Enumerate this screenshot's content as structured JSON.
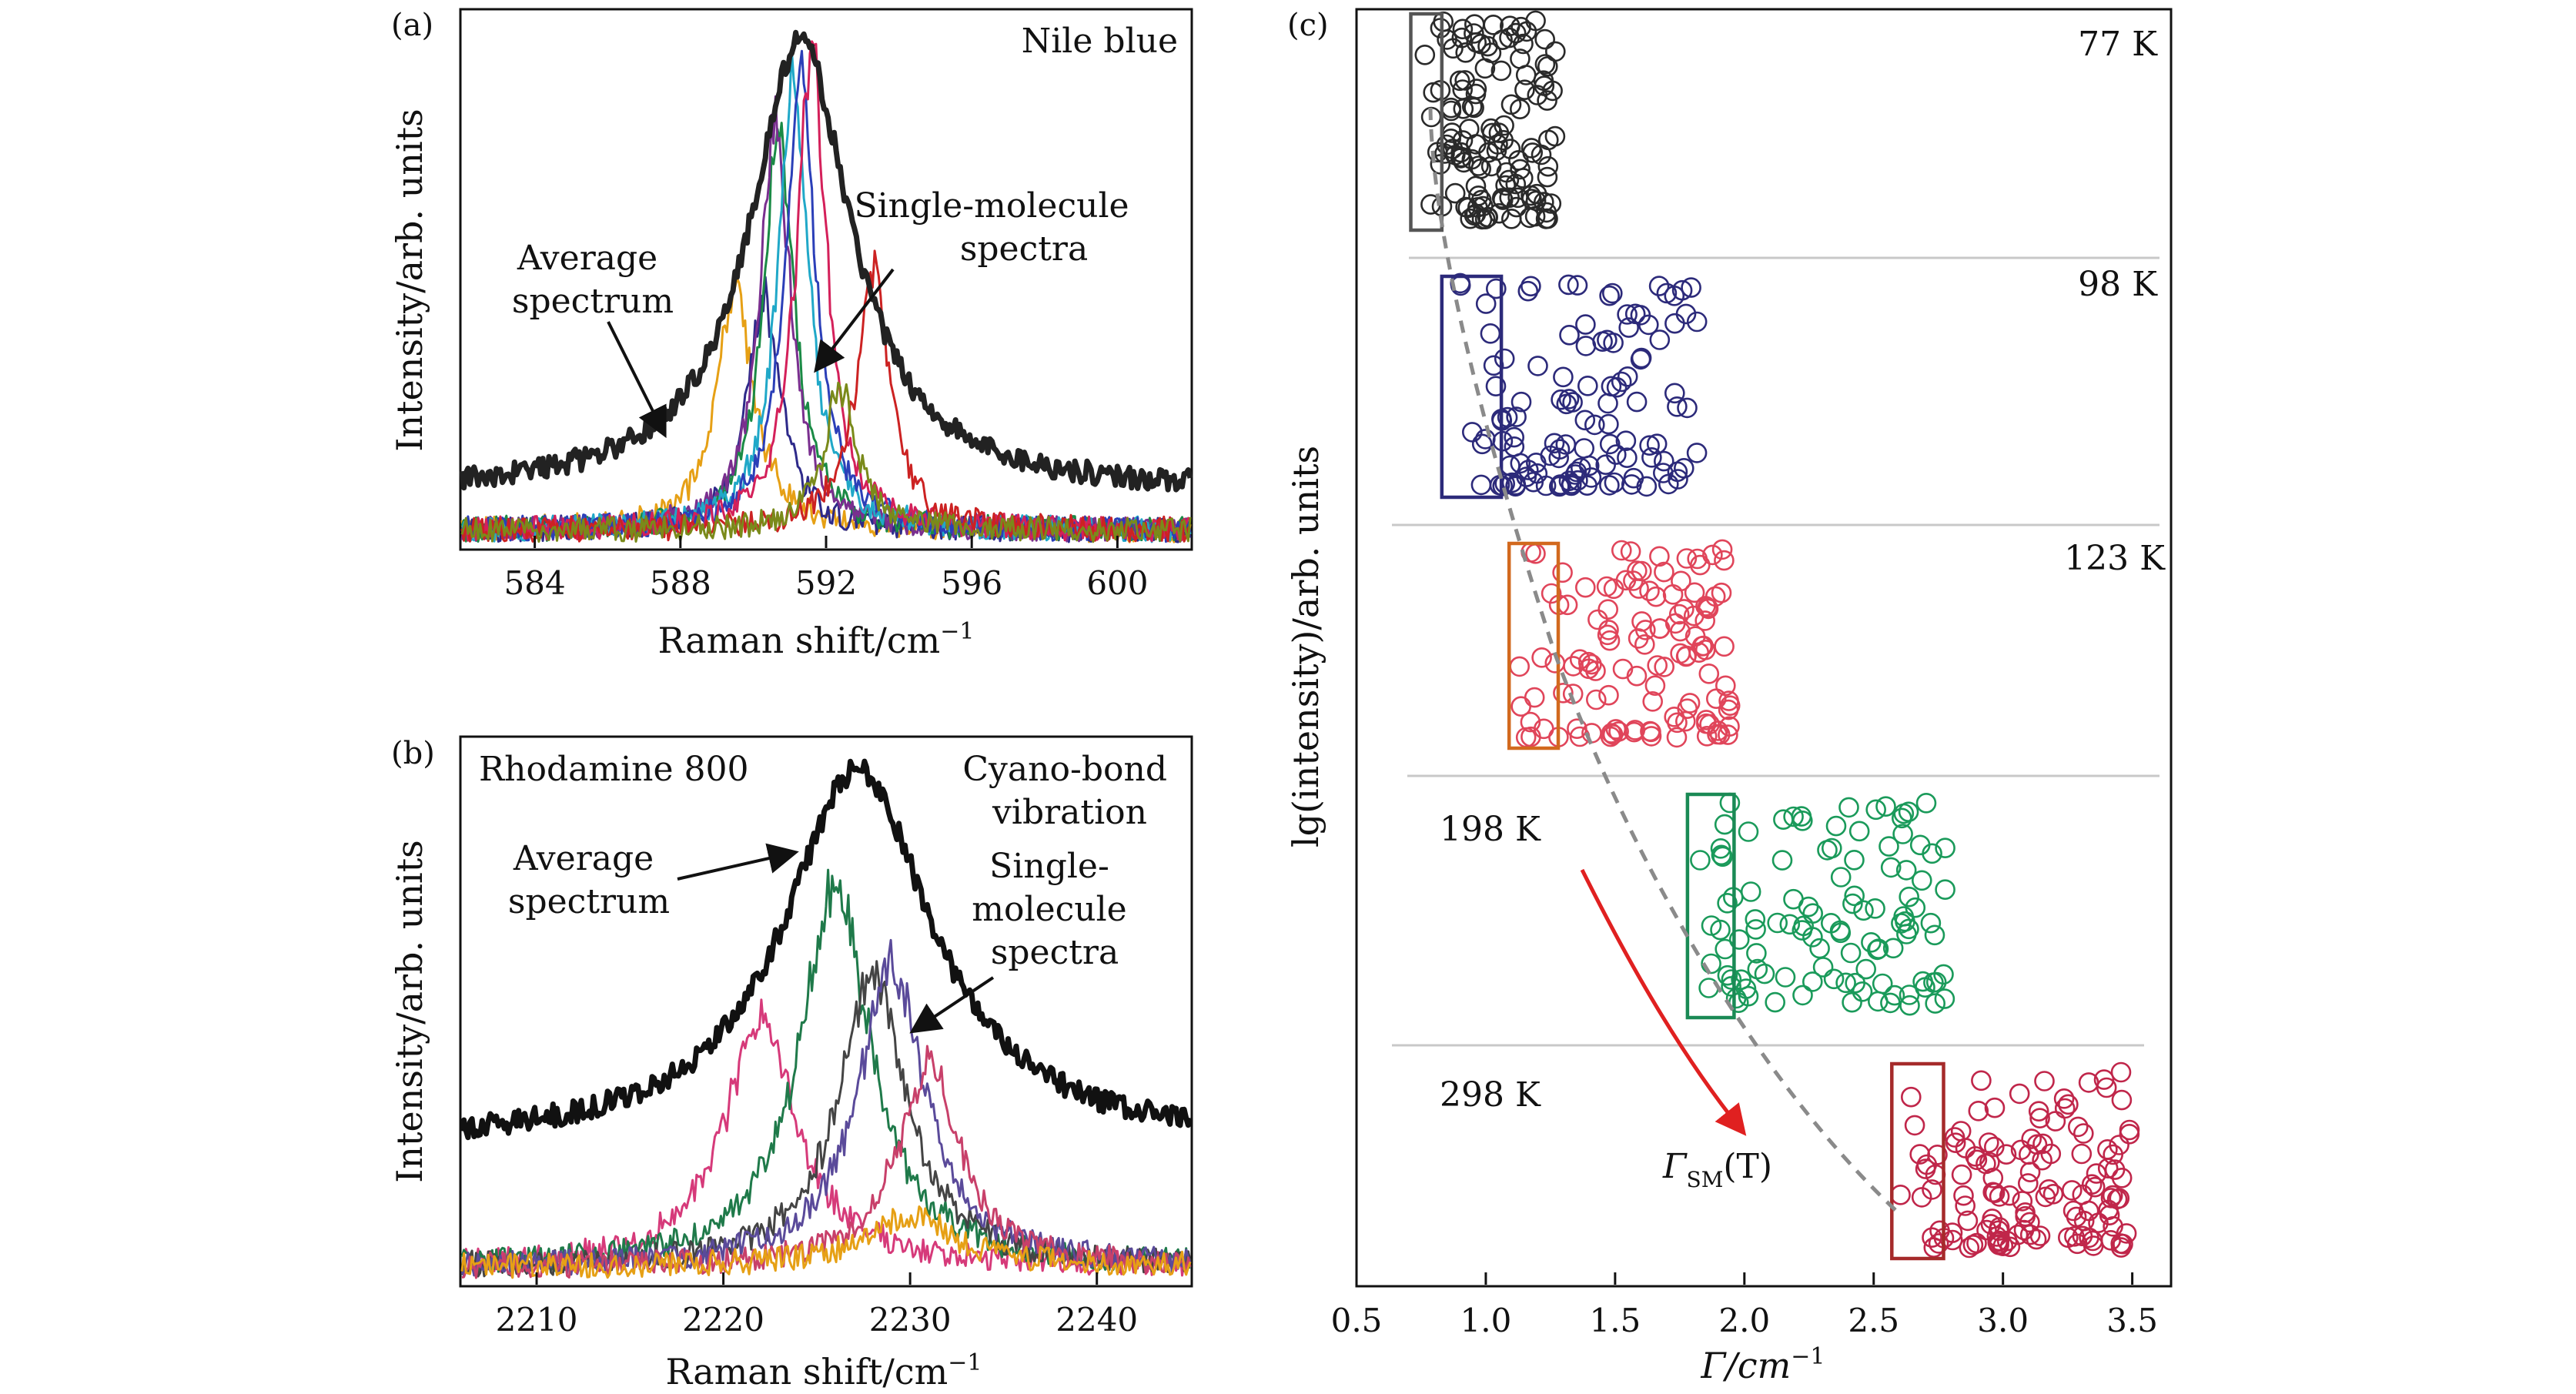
{
  "chart_data": [
    {
      "type": "line",
      "panel_label": "(a)",
      "annotation": "Nile blue",
      "xlabel": "Raman shift/cm",
      "xlabel_sup": "−1",
      "ylabel": "Intensity/arb. units",
      "xlim": [
        582,
        602
      ],
      "ylim": [
        0,
        1.06
      ],
      "xticks": [
        584,
        588,
        592,
        596,
        600
      ],
      "arrow_labels": [
        {
          "lines": [
            "Average",
            "spectrum"
          ]
        },
        {
          "lines": [
            "Single-molecule",
            "spectra"
          ]
        }
      ],
      "series": [
        {
          "role": "average",
          "color": "#222222",
          "center": 591.3,
          "width": 1.7,
          "height": 1.0,
          "baseline": 0.11
        },
        {
          "role": "single",
          "color": "#e6a015",
          "center": 589.5,
          "width": 0.6,
          "height": 0.52
        },
        {
          "role": "single",
          "color": "#2e2a8a",
          "center": 590.3,
          "width": 0.55,
          "height": 0.48
        },
        {
          "role": "single",
          "color": "#1a8a45",
          "center": 590.7,
          "width": 0.5,
          "height": 0.84
        },
        {
          "role": "single",
          "color": "#7a2f8f",
          "center": 590.6,
          "width": 0.5,
          "height": 0.86
        },
        {
          "role": "single",
          "color": "#20a8c8",
          "center": 591.1,
          "width": 0.5,
          "height": 0.96
        },
        {
          "role": "single",
          "color": "#2b3fb8",
          "center": 591.3,
          "width": 0.5,
          "height": 0.98
        },
        {
          "role": "single",
          "color": "#d4205a",
          "center": 591.6,
          "width": 0.5,
          "height": 1.0
        },
        {
          "role": "single",
          "color": "#cc2222",
          "center": 593.3,
          "width": 0.55,
          "height": 0.55
        },
        {
          "role": "single",
          "color": "#7a8a1a",
          "center": 592.4,
          "width": 0.55,
          "height": 0.3
        }
      ]
    },
    {
      "type": "line",
      "panel_label": "(b)",
      "annotations": [
        "Rhodamine 800",
        "Cyano-bond",
        "vibration"
      ],
      "xlabel": "Raman shift/cm",
      "xlabel_sup": "−1",
      "ylabel": "Intensity/arb. units",
      "xlim": [
        2206,
        2245
      ],
      "ylim": [
        0,
        1.06
      ],
      "xticks": [
        2210,
        2220,
        2230,
        2240
      ],
      "arrow_labels": [
        {
          "lines": [
            "Average",
            "spectrum"
          ]
        },
        {
          "lines": [
            "Single-",
            "molecule",
            "spectra"
          ]
        }
      ],
      "series": [
        {
          "role": "average",
          "color": "#111111",
          "center": 2227.2,
          "width": 4.8,
          "height": 1.0,
          "baseline": 0.27
        },
        {
          "role": "single",
          "color": "#d63a7a",
          "center": 2222.0,
          "width": 2.4,
          "height": 0.5
        },
        {
          "role": "single",
          "color": "#1f7a4a",
          "center": 2226.0,
          "width": 2.3,
          "height": 0.78
        },
        {
          "role": "single",
          "color": "#444444",
          "center": 2228.0,
          "width": 2.2,
          "height": 0.6
        },
        {
          "role": "single",
          "color": "#5a4a9a",
          "center": 2229.0,
          "width": 2.2,
          "height": 0.62
        },
        {
          "role": "single",
          "color": "#c8406a",
          "center": 2231.0,
          "width": 2.0,
          "height": 0.42
        },
        {
          "role": "single",
          "color": "#e6a015",
          "center": 2230.0,
          "width": 3.0,
          "height": 0.1
        }
      ]
    },
    {
      "type": "scatter",
      "panel_label": "(c)",
      "xlabel": "Γ/cm",
      "xlabel_sup": "−1",
      "ylabel": "lg(intensity)/arb. units",
      "xlim": [
        0.5,
        3.65
      ],
      "xticks": [
        0.5,
        1.0,
        1.5,
        2.0,
        2.5,
        3.0,
        3.5
      ],
      "xtick_labels": [
        "0.5",
        "1.0",
        "1.5",
        "2.0",
        "2.5",
        "3.0",
        "3.5"
      ],
      "trend_label": "Γ",
      "trend_label_sub": "SM",
      "trend_label_tail": "(T)",
      "groups": [
        {
          "temperature": "77 K",
          "color": "#2a2a2a",
          "box_color": "#555555",
          "box_x": [
            0.71,
            0.83
          ],
          "x_range": [
            0.75,
            1.27
          ],
          "count": 130
        },
        {
          "temperature": "98 K",
          "color": "#2c2a7a",
          "box_color": "#2c2a7a",
          "box_x": [
            0.83,
            1.06
          ],
          "x_range": [
            0.84,
            1.82
          ],
          "count": 120
        },
        {
          "temperature": "123 K",
          "color": "#e0455a",
          "box_color": "#d2691e",
          "box_x": [
            1.09,
            1.28
          ],
          "x_range": [
            1.12,
            1.95
          ],
          "count": 120
        },
        {
          "temperature": "198 K",
          "color": "#1a9a5a",
          "box_color": "#1a8a55",
          "box_x": [
            1.78,
            1.96
          ],
          "x_range": [
            1.8,
            2.78
          ],
          "count": 110
        },
        {
          "temperature": "298 K",
          "color": "#c0264a",
          "box_color": "#a52a2a",
          "box_x": [
            2.57,
            2.77
          ],
          "x_range": [
            2.6,
            3.5
          ],
          "count": 130
        }
      ]
    }
  ]
}
